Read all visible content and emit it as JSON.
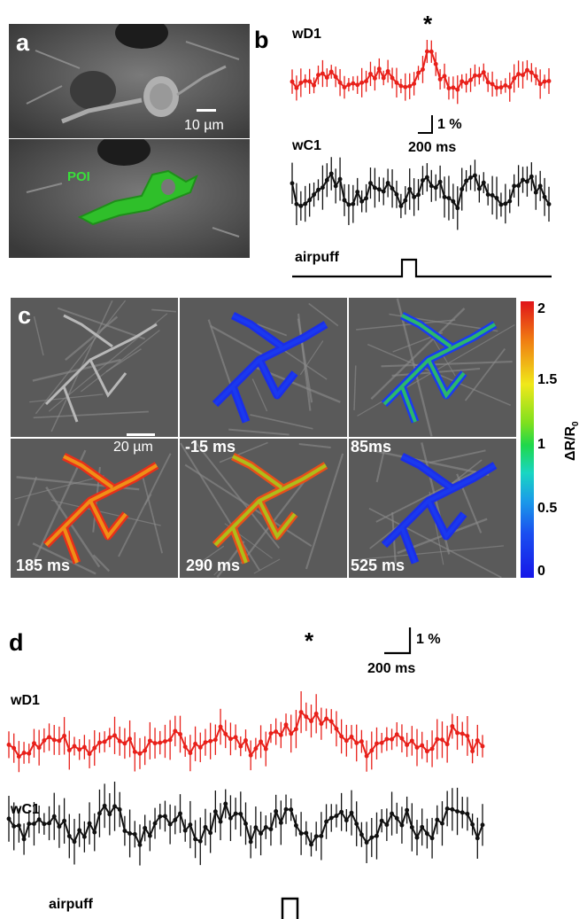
{
  "panel_labels": {
    "a": "a",
    "b": "b",
    "c": "c",
    "d": "d"
  },
  "panel_a": {
    "scale_bar_label": "10 µm",
    "roi_label": "POI"
  },
  "panel_b": {
    "trace_top_label": "wD1",
    "trace_bottom_label": "wC1",
    "significance_marker": "*",
    "scale_vertical": "1 %",
    "scale_horizontal": "200 ms",
    "stimulus_label": "airpuff",
    "colors": {
      "wD1": "#e8201a",
      "wC1": "#111111"
    }
  },
  "panel_c": {
    "scale_bar_label": "20 µm",
    "frame_times": [
      "-15 ms",
      "85ms",
      "185 ms",
      "290 ms",
      "525 ms"
    ],
    "colorbar_ticks": [
      "2",
      "1.5",
      "1",
      "0.5",
      "0"
    ],
    "colorbar_label": "ΔR/R",
    "colorbar_label_sub": "0"
  },
  "panel_d": {
    "trace_top_label": "wD1",
    "trace_bottom_label": "wC1",
    "significance_marker": "*",
    "scale_vertical": "1 %",
    "scale_horizontal": "200 ms",
    "stimulus_label": "airpuff"
  }
}
